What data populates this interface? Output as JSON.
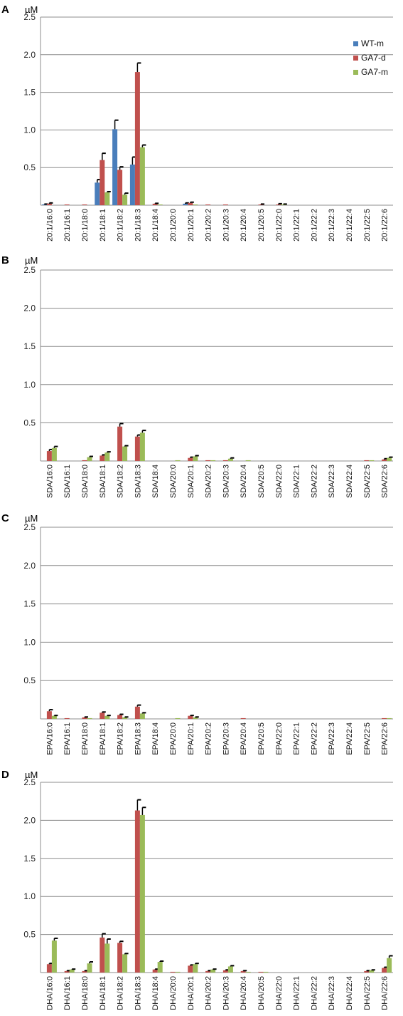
{
  "colors": {
    "WT-m": "#4a7ebb",
    "GA7-d": "#c0504d",
    "GA7-m": "#9bbb59",
    "grid": "#8c8c8c",
    "error": "#000000"
  },
  "chart_data": [
    {
      "panel": "A",
      "type": "bar",
      "unit": "µM",
      "ylim": [
        0,
        2.5
      ],
      "yticks": [
        "0.5",
        "1.0",
        "1.5",
        "2.0",
        "2.5"
      ],
      "grid": true,
      "legend": "top-right",
      "categories": [
        "20:1/16:0",
        "20:1/16:1",
        "20:1/18:0",
        "20:1/18:1",
        "20:1/18:2",
        "20:1/18:3",
        "20:1/18:4",
        "20:1/20:0",
        "20:1/20:1",
        "20:1/20:2",
        "20:1/20:3",
        "20:1/20:4",
        "20:1/20:5",
        "20:1/22:0",
        "20:1/22:1",
        "20:1/22:2",
        "20:1/22:3",
        "20:1/22:4",
        "20:1/22:5",
        "20:1/22:6"
      ],
      "series": [
        {
          "name": "WT-m",
          "values": [
            0.01,
            0,
            0,
            0.3,
            1.01,
            0.54,
            0,
            0,
            0.02,
            0,
            0,
            0,
            0,
            0,
            0,
            0,
            0,
            0,
            0,
            0
          ],
          "errors": [
            0.005,
            0,
            0,
            0.04,
            0.12,
            0.1,
            0,
            0,
            0.01,
            0,
            0,
            0,
            0,
            0,
            0,
            0,
            0,
            0,
            0,
            0
          ]
        },
        {
          "name": "GA7-d",
          "values": [
            0.02,
            0.01,
            0.01,
            0.6,
            0.47,
            1.77,
            0.02,
            0,
            0.03,
            0.01,
            0.01,
            0,
            0.01,
            0.01,
            0,
            0,
            0,
            0,
            0,
            0
          ],
          "errors": [
            0.01,
            0,
            0,
            0.09,
            0.04,
            0.12,
            0.005,
            0,
            0.01,
            0,
            0,
            0,
            0.005,
            0.01,
            0,
            0,
            0,
            0,
            0,
            0.01
          ]
        },
        {
          "name": "GA7-m",
          "values": [
            0,
            0,
            0,
            0.17,
            0.14,
            0.77,
            0.01,
            0,
            0.01,
            0,
            0,
            0,
            0,
            0.01,
            0,
            0,
            0,
            0,
            0,
            0
          ],
          "errors": [
            0,
            0,
            0,
            0.01,
            0.02,
            0.03,
            0,
            0,
            0,
            0,
            0,
            0,
            0,
            0.005,
            0,
            0,
            0,
            0,
            0,
            0
          ]
        }
      ]
    },
    {
      "panel": "B",
      "type": "bar",
      "unit": "µM",
      "ylim": [
        0,
        2.5
      ],
      "yticks": [
        "0.5",
        "1.0",
        "1.5",
        "2.0",
        "2.5"
      ],
      "grid": true,
      "categories": [
        "SDA/16:0",
        "SDA/16:1",
        "SDA/18:0",
        "SDA/18:1",
        "SDA/18:2",
        "SDA/18:3",
        "SDA/18:4",
        "SDA/20:0",
        "SDA/20:1",
        "SDA/20:2",
        "SDA/20:3",
        "SDA/20:4",
        "SDA/20:5",
        "SDA/22:0",
        "SDA/22:1",
        "SDA/22:2",
        "SDA/22:3",
        "SDA/22:4",
        "SDA/22:5",
        "SDA/22:6"
      ],
      "series": [
        {
          "name": "WT-m",
          "values": [
            0,
            0,
            0,
            0,
            0,
            0,
            0,
            0,
            0,
            0,
            0,
            0,
            0,
            0,
            0,
            0,
            0,
            0,
            0,
            0
          ],
          "errors": [
            0,
            0,
            0,
            0,
            0,
            0,
            0,
            0,
            0,
            0,
            0,
            0,
            0,
            0,
            0,
            0,
            0,
            0,
            0,
            0
          ]
        },
        {
          "name": "GA7-d",
          "values": [
            0.13,
            0,
            0.01,
            0.07,
            0.45,
            0.32,
            0,
            0,
            0.04,
            0.01,
            0.01,
            0,
            0,
            0,
            0,
            0,
            0,
            0,
            0.01,
            0.02
          ],
          "errors": [
            0.02,
            0,
            0,
            0.01,
            0.04,
            0.02,
            0,
            0,
            0.01,
            0,
            0,
            0,
            0,
            0,
            0,
            0,
            0,
            0,
            0,
            0.01
          ]
        },
        {
          "name": "GA7-m",
          "values": [
            0.17,
            0,
            0.05,
            0.11,
            0.19,
            0.37,
            0,
            0.01,
            0.06,
            0.01,
            0.03,
            0.01,
            0,
            0,
            0,
            0,
            0,
            0,
            0.01,
            0.04
          ],
          "errors": [
            0.02,
            0,
            0.01,
            0.01,
            0.01,
            0.03,
            0,
            0,
            0.01,
            0,
            0.01,
            0,
            0,
            0,
            0,
            0,
            0,
            0,
            0,
            0.01
          ]
        }
      ]
    },
    {
      "panel": "C",
      "type": "bar",
      "unit": "µM",
      "ylim": [
        0,
        2.5
      ],
      "yticks": [
        "0.5",
        "1.0",
        "1.5",
        "2.0",
        "2.5"
      ],
      "grid": true,
      "categories": [
        "EPA/16:0",
        "EPA/16:1",
        "EPA/18:0",
        "EPA/18:1",
        "EPA/18:2",
        "EPA/18:3",
        "EPA/18:4",
        "EPA/20:0",
        "EPA/20:1",
        "EPA/20:2",
        "EPA/20:3",
        "EPA/20:4",
        "EPA/20:5",
        "EPA/22:0",
        "EPA/22:1",
        "EPA/22:2",
        "EPA/22:3",
        "EPA/22:4",
        "EPA/22:5",
        "EPA/22:6"
      ],
      "series": [
        {
          "name": "WT-m",
          "values": [
            0,
            0,
            0,
            0,
            0,
            0,
            0,
            0,
            0,
            0,
            0,
            0,
            0,
            0,
            0,
            0,
            0,
            0,
            0,
            0
          ],
          "errors": [
            0,
            0,
            0,
            0,
            0,
            0,
            0,
            0,
            0,
            0,
            0,
            0,
            0,
            0,
            0,
            0,
            0,
            0,
            0,
            0
          ]
        },
        {
          "name": "GA7-d",
          "values": [
            0.1,
            0.01,
            0.02,
            0.08,
            0.05,
            0.16,
            0,
            0,
            0.04,
            0,
            0,
            0.01,
            0,
            0,
            0,
            0,
            0,
            0,
            0,
            0.01
          ],
          "errors": [
            0.02,
            0,
            0.005,
            0.01,
            0.01,
            0.02,
            0,
            0,
            0.005,
            0,
            0,
            0,
            0,
            0,
            0,
            0,
            0,
            0,
            0,
            0
          ]
        },
        {
          "name": "GA7-m",
          "values": [
            0.04,
            0,
            0.01,
            0.04,
            0.02,
            0.07,
            0,
            0.01,
            0.02,
            0,
            0,
            0,
            0,
            0,
            0,
            0,
            0,
            0,
            0,
            0.01
          ],
          "errors": [
            0.005,
            0,
            0,
            0.005,
            0.005,
            0.01,
            0,
            0,
            0.005,
            0,
            0,
            0,
            0,
            0,
            0,
            0,
            0,
            0,
            0,
            0
          ]
        }
      ]
    },
    {
      "panel": "D",
      "type": "bar",
      "unit": "µM",
      "ylim": [
        0,
        2.5
      ],
      "yticks": [
        "0.5",
        "1.0",
        "1.5",
        "2.0",
        "2.5"
      ],
      "grid": true,
      "categories": [
        "DHA/16:0",
        "DHA/16:1",
        "DHA/18:0",
        "DHA/18:1",
        "DHA/18:2",
        "DHA/18:3",
        "DHA/18:4",
        "DHA/20:0",
        "DHA/20:1",
        "DHA/20:2",
        "DHA/20:3",
        "DHA/20:4",
        "DHA/20:5",
        "DHA/22:0",
        "DHA/22:1",
        "DHA/22:2",
        "DHA/22:3",
        "DHA/22:4",
        "DHA/22:5",
        "DHA/22:6"
      ],
      "series": [
        {
          "name": "WT-m",
          "values": [
            0,
            0,
            0,
            0,
            0,
            0,
            0,
            0,
            0,
            0,
            0,
            0,
            0,
            0,
            0,
            0,
            0,
            0,
            0,
            0
          ],
          "errors": [
            0,
            0,
            0,
            0,
            0,
            0,
            0,
            0,
            0,
            0,
            0,
            0,
            0,
            0,
            0,
            0,
            0,
            0,
            0,
            0
          ]
        },
        {
          "name": "GA7-d",
          "values": [
            0.11,
            0.02,
            0.02,
            0.46,
            0.39,
            2.13,
            0.04,
            0.01,
            0.09,
            0.02,
            0.03,
            0.02,
            0.01,
            0,
            0,
            0,
            0,
            0,
            0.02,
            0.06
          ],
          "errors": [
            0.01,
            0.005,
            0.005,
            0.05,
            0.02,
            0.14,
            0.005,
            0,
            0.01,
            0.005,
            0.005,
            0.005,
            0,
            0,
            0,
            0,
            0,
            0,
            0.005,
            0.01
          ]
        },
        {
          "name": "GA7-m",
          "values": [
            0.42,
            0.04,
            0.12,
            0.38,
            0.24,
            2.07,
            0.14,
            0.01,
            0.11,
            0.04,
            0.08,
            0.01,
            0.01,
            0,
            0,
            0,
            0,
            0,
            0.03,
            0.19
          ],
          "errors": [
            0.03,
            0.005,
            0.02,
            0.06,
            0.01,
            0.1,
            0.01,
            0,
            0.01,
            0.005,
            0.01,
            0,
            0,
            0,
            0,
            0,
            0,
            0,
            0.005,
            0.03
          ]
        }
      ]
    }
  ]
}
